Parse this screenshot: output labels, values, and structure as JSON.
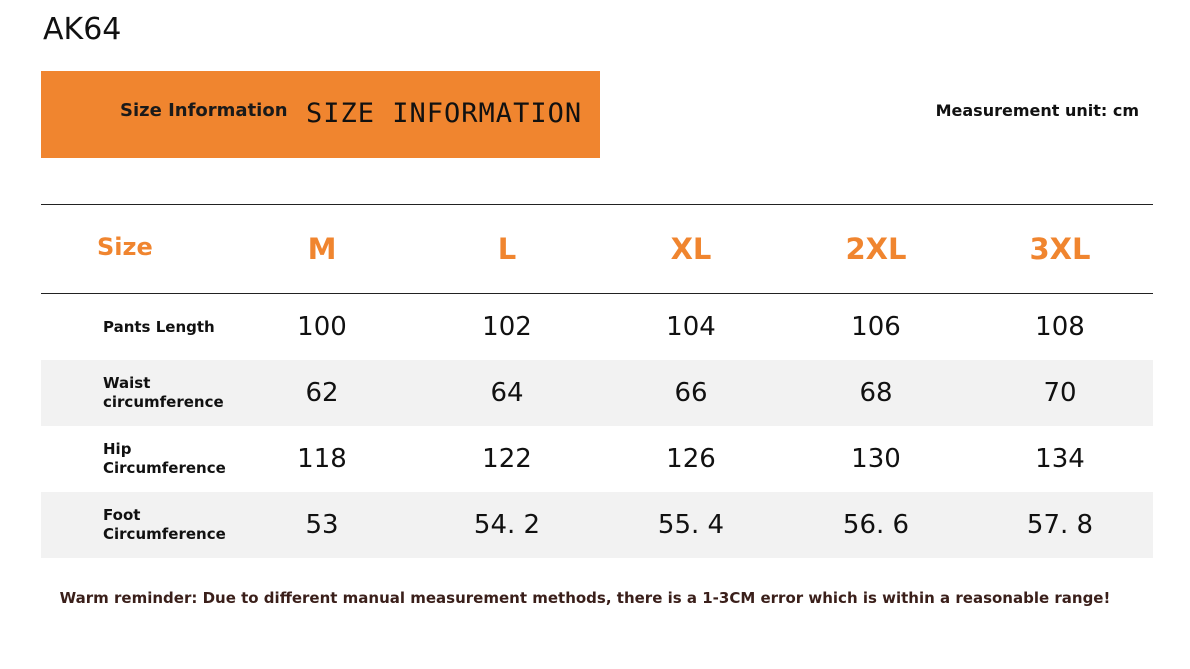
{
  "product_code": "AK64",
  "banner": {
    "label": "Size Information",
    "title": "SIZE INFORMATION",
    "color": "#f0852f"
  },
  "unit_note": "Measurement unit: cm",
  "table": {
    "header_label": "Size",
    "sizes": [
      "M",
      "L",
      "XL",
      "2XL",
      "3XL"
    ],
    "rows": [
      {
        "label_line1": "Pants Length",
        "label_line2": "",
        "values": [
          "100",
          "102",
          "104",
          "106",
          "108"
        ]
      },
      {
        "label_line1": "Waist",
        "label_line2": "circumference",
        "values": [
          "62",
          "64",
          "66",
          "68",
          "70"
        ]
      },
      {
        "label_line1": "Hip",
        "label_line2": "Circumference",
        "values": [
          "118",
          "122",
          "126",
          "130",
          "134"
        ]
      },
      {
        "label_line1": "Foot",
        "label_line2": "Circumference",
        "values": [
          "53",
          "54. 2",
          "55. 4",
          "56. 6",
          "57. 8"
        ]
      }
    ]
  },
  "reminder": "Warm reminder: Due to different manual measurement methods, there is a 1-3CM error which is within a reasonable range!"
}
